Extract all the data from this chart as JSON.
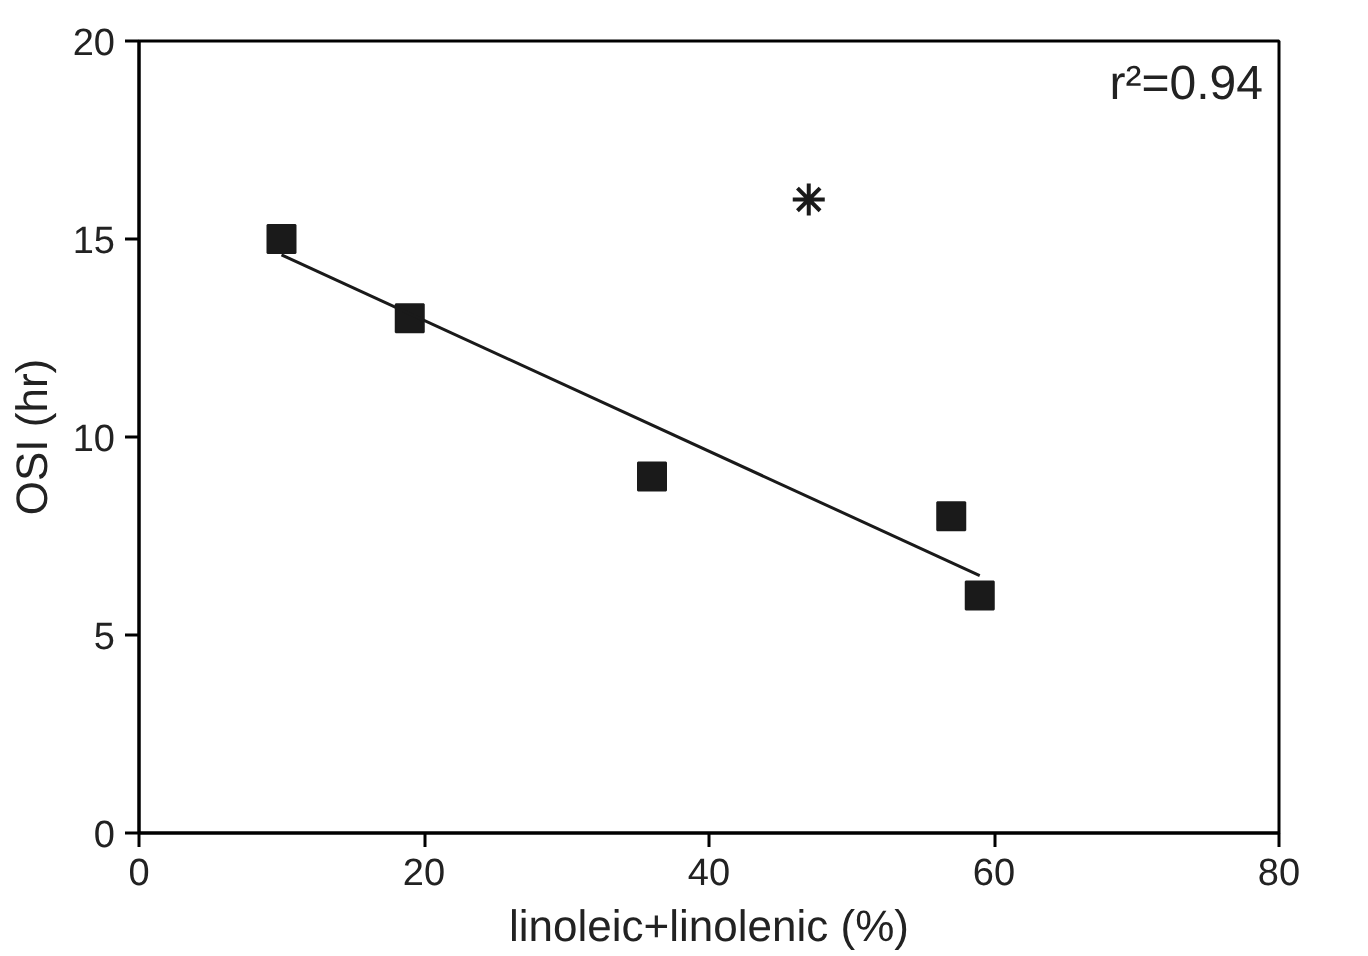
{
  "chart_data": {
    "type": "scatter",
    "xlabel": "linoleic+linolenic (%)",
    "ylabel": "OSI (hr)",
    "xlim": [
      0,
      80
    ],
    "ylim": [
      0,
      20
    ],
    "xticks": [
      0,
      20,
      40,
      60,
      80
    ],
    "yticks": [
      0,
      5,
      10,
      15,
      20
    ],
    "grid": false,
    "annotations": [
      "r²=0.94"
    ],
    "series": [
      {
        "marker": "square",
        "color": "#1a1a1a",
        "x": [
          10,
          19,
          36,
          57,
          59
        ],
        "values": [
          15,
          13,
          9,
          8,
          6
        ]
      },
      {
        "marker": "cross",
        "color": "#1a1a1a",
        "x": [
          47
        ],
        "values": [
          16
        ]
      },
      {
        "type": "line",
        "color": "#1a1a1a",
        "x": [
          10,
          59
        ],
        "values": [
          14.6,
          6.5
        ]
      }
    ]
  }
}
